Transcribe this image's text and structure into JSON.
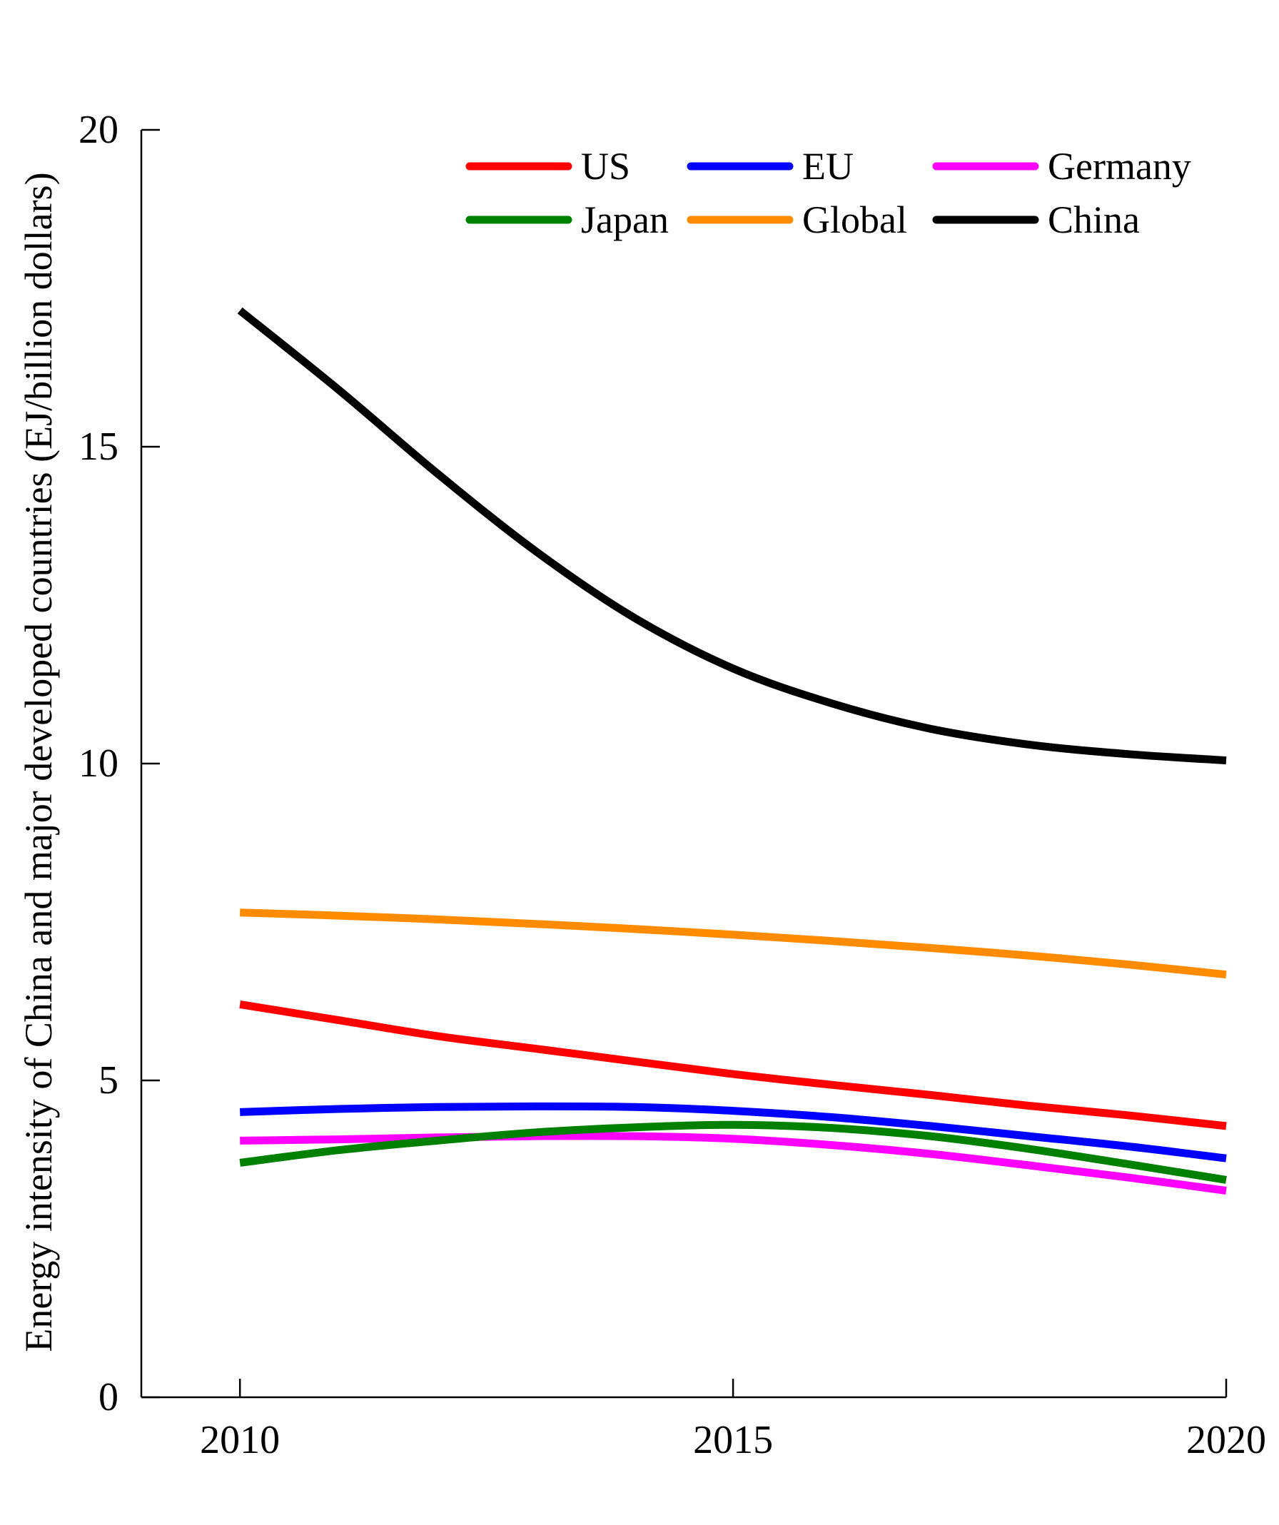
{
  "chart_data": {
    "type": "line",
    "title": "",
    "xlabel": "",
    "ylabel": "Energy intensity of China and major developed countries (EJ/billion dollars)",
    "xlim": [
      2009,
      2020
    ],
    "ylim": [
      0,
      20
    ],
    "xticks": [
      "2010",
      "2015",
      "2020"
    ],
    "xtick_values": [
      2010,
      2015,
      2020
    ],
    "yticks": [
      "0",
      "5",
      "10",
      "15",
      "20"
    ],
    "ytick_values": [
      0,
      5,
      10,
      15,
      20
    ],
    "grid": false,
    "legend_position": "top-right",
    "x": [
      2010,
      2011,
      2012,
      2013,
      2014,
      2015,
      2016,
      2017,
      2018,
      2019,
      2020
    ],
    "series": [
      {
        "name": "US",
        "color": "#ff0000",
        "values": [
          6.2,
          5.95,
          5.7,
          5.5,
          5.3,
          5.1,
          4.93,
          4.77,
          4.6,
          4.45,
          4.28
        ]
      },
      {
        "name": "EU",
        "color": "#0000ff",
        "values": [
          4.5,
          4.55,
          4.58,
          4.59,
          4.58,
          4.52,
          4.42,
          4.28,
          4.12,
          3.96,
          3.77
        ]
      },
      {
        "name": "Germany",
        "color": "#ff00ff",
        "values": [
          4.05,
          4.07,
          4.1,
          4.12,
          4.12,
          4.08,
          3.98,
          3.84,
          3.66,
          3.47,
          3.26
        ]
      },
      {
        "name": "Japan",
        "color": "#008000",
        "values": [
          3.7,
          3.9,
          4.05,
          4.18,
          4.26,
          4.3,
          4.25,
          4.12,
          3.92,
          3.68,
          3.43
        ]
      },
      {
        "name": "Global",
        "color": "#ff8c00",
        "values": [
          7.65,
          7.6,
          7.54,
          7.47,
          7.39,
          7.3,
          7.2,
          7.09,
          6.97,
          6.83,
          6.67
        ]
      },
      {
        "name": "China",
        "color": "#000000",
        "values": [
          17.15,
          15.9,
          14.58,
          13.35,
          12.3,
          11.5,
          10.95,
          10.55,
          10.3,
          10.15,
          10.05
        ]
      }
    ]
  }
}
